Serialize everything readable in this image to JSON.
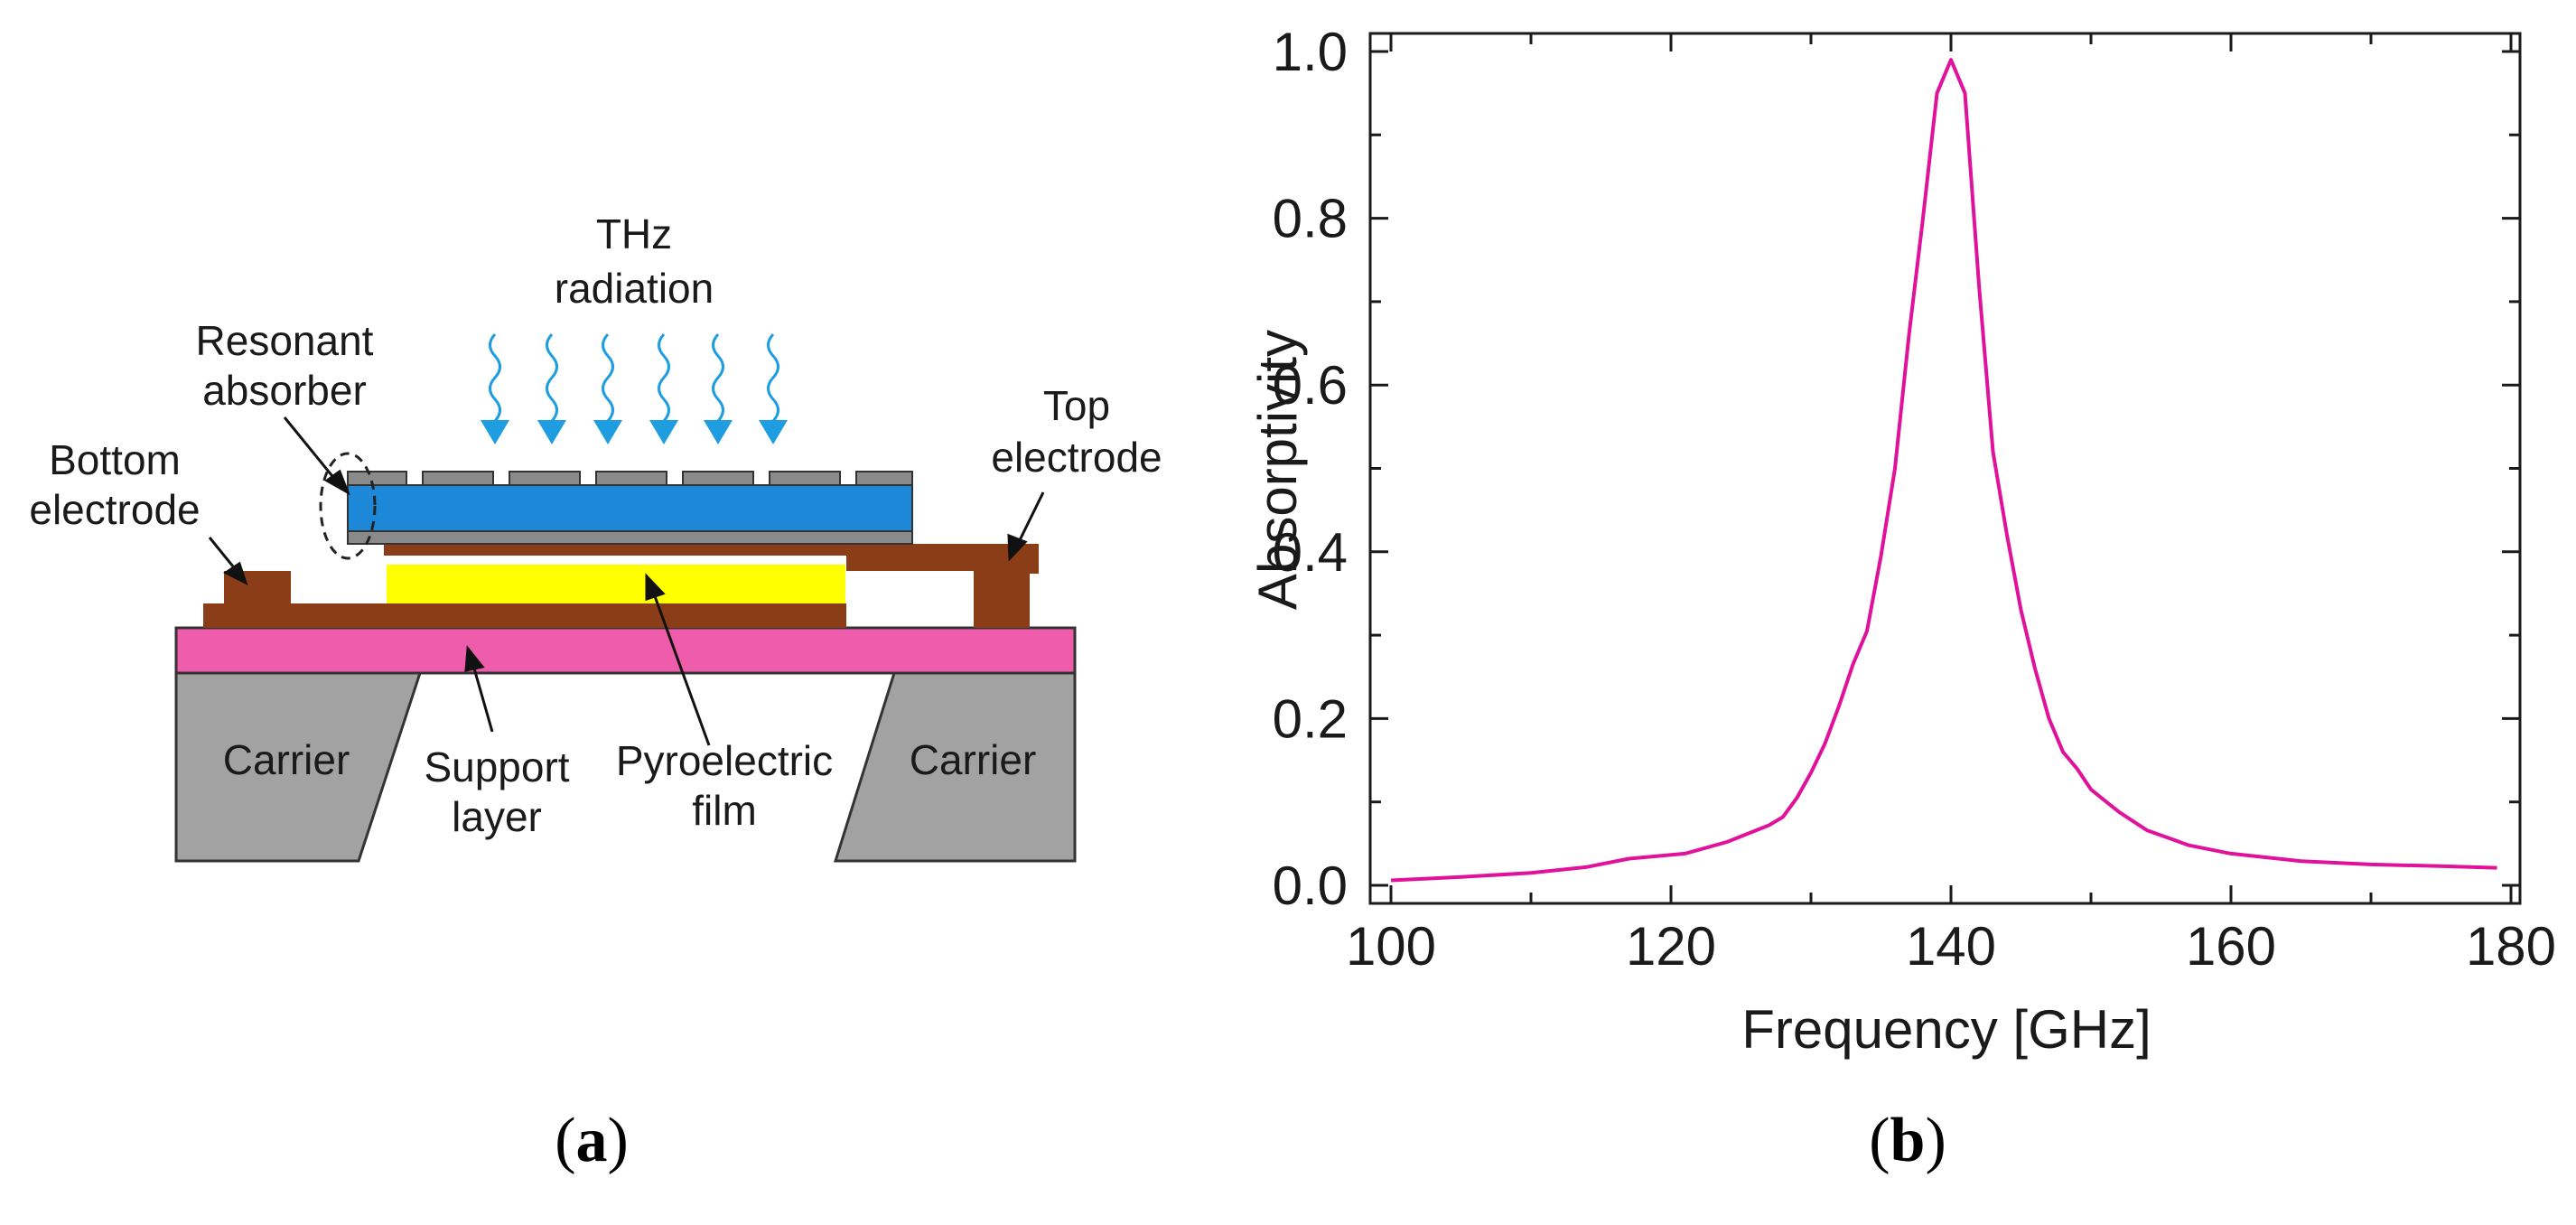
{
  "diagram": {
    "labels": {
      "thz_line1": "THz",
      "thz_line2": "radiation",
      "resonant_line1": "Resonant",
      "resonant_line2": "absorber",
      "top_electrode_line1": "Top",
      "top_electrode_line2": "electrode",
      "bottom_electrode_line1": "Bottom",
      "bottom_electrode_line2": "electrode",
      "carrier_left": "Carrier",
      "carrier_right": "Carrier",
      "support_line1": "Support",
      "support_line2": "layer",
      "pyro_line1": "Pyroelectric",
      "pyro_line2": "film"
    },
    "colors": {
      "absorber_blue": "#1e88d8",
      "electrode_brown": "#8b3d17",
      "pyro_yellow": "#ffff00",
      "support_pink": "#ee5cab",
      "carrier_gray": "#a2a2a2",
      "wave_blue": "#1e9ee0"
    }
  },
  "panel_labels": {
    "a_open": "(",
    "a_letter": "a",
    "a_close": ")",
    "b_open": "(",
    "b_letter": "b",
    "b_close": ")"
  },
  "chart_data": {
    "type": "line",
    "xlabel": "Frequency [GHz]",
    "ylabel": "Absorptivity",
    "xlim": [
      100,
      180
    ],
    "ylim": [
      0.0,
      1.0
    ],
    "xticks": [
      100,
      120,
      140,
      160,
      180
    ],
    "yticks": [
      0.0,
      0.2,
      0.4,
      0.6,
      0.8,
      1.0
    ],
    "ytick_labels": [
      "0.0",
      "0.2",
      "0.4",
      "0.6",
      "0.8",
      "1.0"
    ],
    "color": "#e0119a",
    "series": [
      {
        "name": "Absorptivity",
        "x": [
          100,
          105,
          110,
          114,
          117,
          121,
          124,
          127,
          128,
          129,
          130,
          131,
          132,
          133,
          134,
          135,
          136,
          137,
          138,
          139,
          140,
          141,
          142,
          143,
          144,
          145,
          146,
          147,
          148,
          149,
          150,
          152,
          154,
          157,
          160,
          165,
          170,
          175,
          179
        ],
        "y": [
          0.006,
          0.01,
          0.015,
          0.022,
          0.032,
          0.038,
          0.052,
          0.072,
          0.082,
          0.105,
          0.135,
          0.17,
          0.215,
          0.265,
          0.305,
          0.395,
          0.5,
          0.66,
          0.8,
          0.95,
          0.99,
          0.95,
          0.72,
          0.52,
          0.42,
          0.33,
          0.26,
          0.2,
          0.16,
          0.14,
          0.115,
          0.088,
          0.066,
          0.048,
          0.038,
          0.029,
          0.025,
          0.023,
          0.021
        ]
      }
    ]
  }
}
